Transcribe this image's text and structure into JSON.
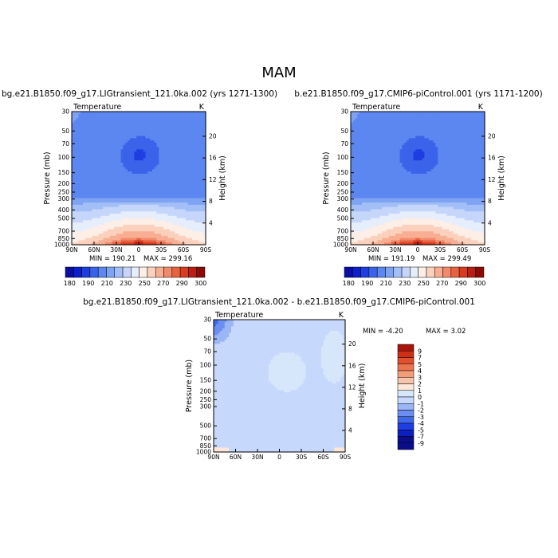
{
  "figure": {
    "title": "MAM",
    "colors": {
      "abs_fill_levels": [
        "#0a0ea3",
        "#0d1fc8",
        "#1e3ee0",
        "#3a63ea",
        "#5c86f0",
        "#7fa3f3",
        "#a3bff7",
        "#c5d6fa",
        "#e6eefc",
        "#fdeee6",
        "#fbd0bd",
        "#f7ae93",
        "#f2896b",
        "#e9623f",
        "#d93b1f",
        "#b81f10",
        "#8b0a06"
      ],
      "diff_fill_levels": [
        "#0a0e8a",
        "#0d1fc0",
        "#1e3ee0",
        "#3f68ea",
        "#6a8ff0",
        "#9ab6f5",
        "#c6d8fb",
        "#d6e6fb",
        "#fde7da",
        "#f8c4a9",
        "#f39c78",
        "#ec7450",
        "#e1502f",
        "#cf2f17",
        "#a8140b"
      ]
    }
  },
  "chart_data": [
    {
      "type": "heatmap",
      "id": "panel-lig",
      "title": "bg.e21.B1850.f09_g17.LIGtransient_121.0ka.002 (yrs 1271-1300)",
      "variable_label": "Temperature",
      "units_label": "K",
      "xlabel": "",
      "ylabel": "Pressure (mb)",
      "ylabel_right": "Height (km)",
      "x_ticks": [
        "90N",
        "60N",
        "30N",
        "0",
        "30S",
        "60S",
        "90S"
      ],
      "y_ticks": [
        "30",
        "50",
        "70",
        "100",
        "150",
        "200",
        "250",
        "300",
        "400",
        "500",
        "700",
        "850",
        "1000"
      ],
      "y_ticks_right": [
        "20",
        "16",
        "12",
        "8",
        "4"
      ],
      "min_label": "MIN = 190.21",
      "max_label": "MAX = 299.16",
      "min": 190.21,
      "max": 299.16,
      "colorbar_labels": [
        "180",
        "190",
        "210",
        "230",
        "250",
        "270",
        "290",
        "300"
      ]
    },
    {
      "type": "heatmap",
      "id": "panel-ctrl",
      "title": "b.e21.B1850.f09_g17.CMIP6-piControl.001 (yrs 1171-1200)",
      "variable_label": "Temperature",
      "units_label": "K",
      "xlabel": "",
      "ylabel": "Pressure (mb)",
      "ylabel_right": "Height (km)",
      "x_ticks": [
        "90N",
        "60N",
        "30N",
        "0",
        "30S",
        "60S",
        "90S"
      ],
      "y_ticks": [
        "30",
        "50",
        "70",
        "100",
        "150",
        "200",
        "250",
        "300",
        "400",
        "500",
        "700",
        "850",
        "1000"
      ],
      "y_ticks_right": [
        "20",
        "16",
        "12",
        "8",
        "4"
      ],
      "min_label": "MIN = 191.19",
      "max_label": "MAX = 299.49",
      "min": 191.19,
      "max": 299.49,
      "colorbar_labels": [
        "180",
        "190",
        "210",
        "230",
        "250",
        "270",
        "290",
        "300"
      ]
    },
    {
      "type": "heatmap",
      "id": "panel-diff",
      "title": "bg.e21.B1850.f09_g17.LIGtransient_121.0ka.002 - b.e21.B1850.f09_g17.CMIP6-piControl.001",
      "variable_label": "Temperature",
      "units_label": "K",
      "xlabel": "",
      "ylabel": "Pressure (mb)",
      "ylabel_right": "Height (km)",
      "x_ticks": [
        "90N",
        "60N",
        "30N",
        "0",
        "30S",
        "60S",
        "90S"
      ],
      "y_ticks": [
        "30",
        "50",
        "70",
        "100",
        "150",
        "200",
        "250",
        "300",
        "500",
        "700",
        "850",
        "1000"
      ],
      "y_ticks_right": [
        "20",
        "16",
        "12",
        "8",
        "4"
      ],
      "min_label": "MIN =  -4.20",
      "max_label": "MAX =   3.02",
      "min": -4.2,
      "max": 3.02,
      "colorbar_labels": [
        "9",
        "7",
        "5",
        "4",
        "3",
        "2",
        "1",
        "0",
        "-1",
        "-2",
        "-3",
        "-4",
        "-5",
        "-7",
        "-9"
      ]
    }
  ]
}
